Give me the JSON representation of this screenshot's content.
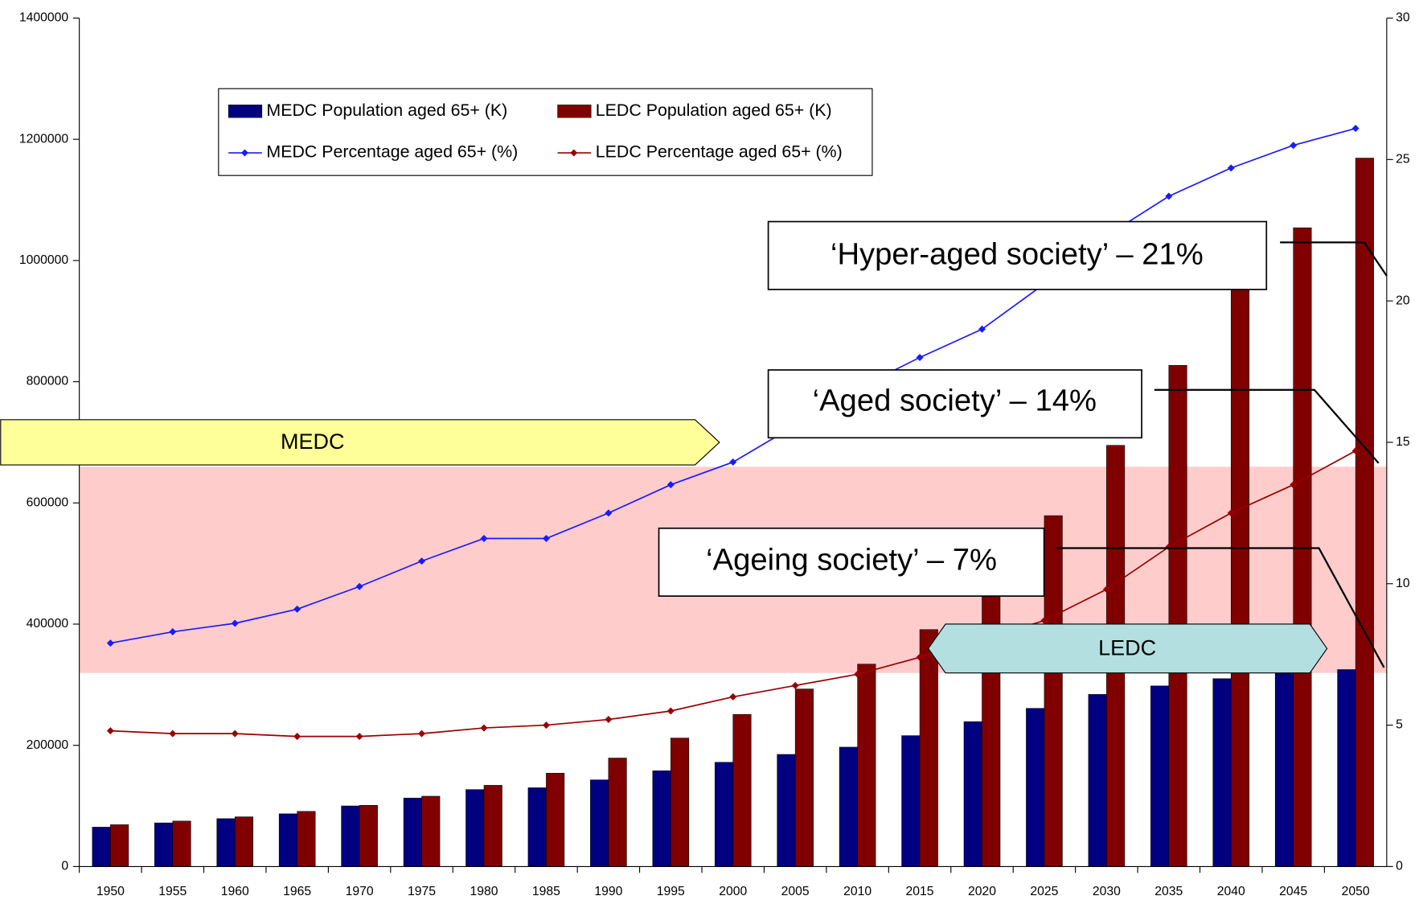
{
  "chart_data": {
    "type": "bar",
    "categories": [
      "1950",
      "1955",
      "1960",
      "1965",
      "1970",
      "1975",
      "1980",
      "1985",
      "1990",
      "1995",
      "2000",
      "2005",
      "2010",
      "2015",
      "2020",
      "2025",
      "2030",
      "2035",
      "2040",
      "2045",
      "2050"
    ],
    "series": [
      {
        "name": "MEDC Population aged 65+ (K)",
        "type": "bar",
        "color": "#000080",
        "values": [
          65000,
          72000,
          79000,
          87000,
          100000,
          113000,
          127000,
          130000,
          143000,
          158000,
          172000,
          185000,
          197000,
          216000,
          239000,
          261000,
          284000,
          298000,
          310000,
          319000,
          325000
        ]
      },
      {
        "name": "LEDC Population aged 65+ (K)",
        "type": "bar",
        "color": "#800000",
        "values": [
          69000,
          75000,
          82000,
          91000,
          101000,
          116000,
          134000,
          154000,
          179000,
          212000,
          251000,
          293000,
          334000,
          391000,
          470000,
          579000,
          695000,
          827000,
          955000,
          1054000,
          1169000
        ]
      },
      {
        "name": "MEDC Percentage aged 65+ (%)",
        "type": "line",
        "axis": "y2",
        "color": "#1a1aff",
        "values": [
          7.9,
          8.3,
          8.6,
          9.1,
          9.9,
          10.8,
          11.6,
          11.6,
          12.5,
          13.5,
          14.3,
          15.6,
          16.9,
          18.0,
          19.0,
          20.6,
          22.3,
          23.7,
          24.7,
          25.5,
          26.1
        ]
      },
      {
        "name": "LEDC Percentage aged 65+ (%)",
        "type": "line",
        "axis": "y2",
        "color": "#990000",
        "values": [
          4.8,
          4.7,
          4.7,
          4.6,
          4.6,
          4.7,
          4.9,
          5.0,
          5.2,
          5.5,
          6.0,
          6.4,
          6.8,
          7.4,
          8.0,
          8.7,
          9.8,
          11.3,
          12.5,
          13.5,
          14.7
        ]
      }
    ],
    "ylim": [
      0,
      1400000
    ],
    "yticks": [
      0,
      200000,
      400000,
      600000,
      800000,
      1000000,
      1200000,
      1400000
    ],
    "y2lim": [
      0,
      30
    ],
    "y2ticks": [
      0,
      5,
      10,
      15,
      20,
      25,
      30
    ],
    "annotations": [
      "‘Hyper-aged society’ – 21%",
      "‘Aged society’ – 14%",
      "‘Ageing society’ – 7%",
      "MEDC",
      "LEDC"
    ]
  }
}
